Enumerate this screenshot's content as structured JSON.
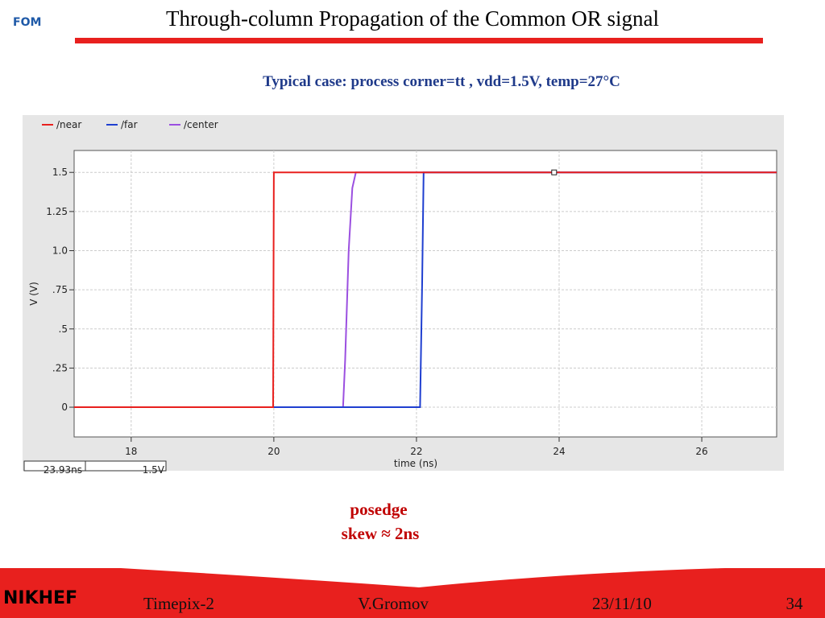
{
  "slide": {
    "title": "Through-column Propagation of the Common OR signal",
    "subtitle": "Typical case: process corner=tt , vdd=1.5V, temp=27°C",
    "annotation": [
      "posedge",
      "skew ≈ 2ns"
    ],
    "logos": [
      "FOM",
      "NIKHEF"
    ],
    "footer": [
      "Timepix-2",
      "V.Gromov",
      "23/11/10",
      "34"
    ]
  },
  "chart_data": {
    "type": "line",
    "x_label": "time (ns)",
    "y_label": "V (V)",
    "xlim": [
      17.2,
      27.05
    ],
    "ylim": [
      -0.19,
      1.64
    ],
    "xticks": [
      18,
      20,
      22,
      24,
      26
    ],
    "yticks": [
      0,
      {
        "value": 0.25,
        "label": ".25"
      },
      {
        "value": 0.5,
        "label": ".5"
      },
      {
        "value": 0.75,
        "label": ".75"
      },
      {
        "value": 1.0,
        "label": "1.0"
      },
      1.25,
      1.5
    ],
    "grid": true,
    "series": [
      {
        "name": "/near",
        "color": "#e8201e",
        "x": [
          17.2,
          19.99,
          20,
          27.05
        ],
        "values": [
          0,
          0,
          1.5,
          1.5
        ]
      },
      {
        "name": "/far",
        "color": "#1f3fd0",
        "x": [
          17.2,
          22.05,
          22.08,
          22.1,
          27.05
        ],
        "values": [
          0,
          0,
          0.8,
          1.5,
          1.5
        ]
      },
      {
        "name": "/center",
        "color": "#9b4fe0",
        "x": [
          20,
          20.97,
          21.0,
          21.05,
          21.1,
          21.15,
          27.05
        ],
        "values": [
          0,
          0,
          0.3,
          1.0,
          1.4,
          1.5,
          1.5
        ]
      }
    ],
    "cursor": [
      23.93,
      1.5
    ],
    "cursor_labels": [
      "23.93ns",
      "1.5V"
    ]
  }
}
